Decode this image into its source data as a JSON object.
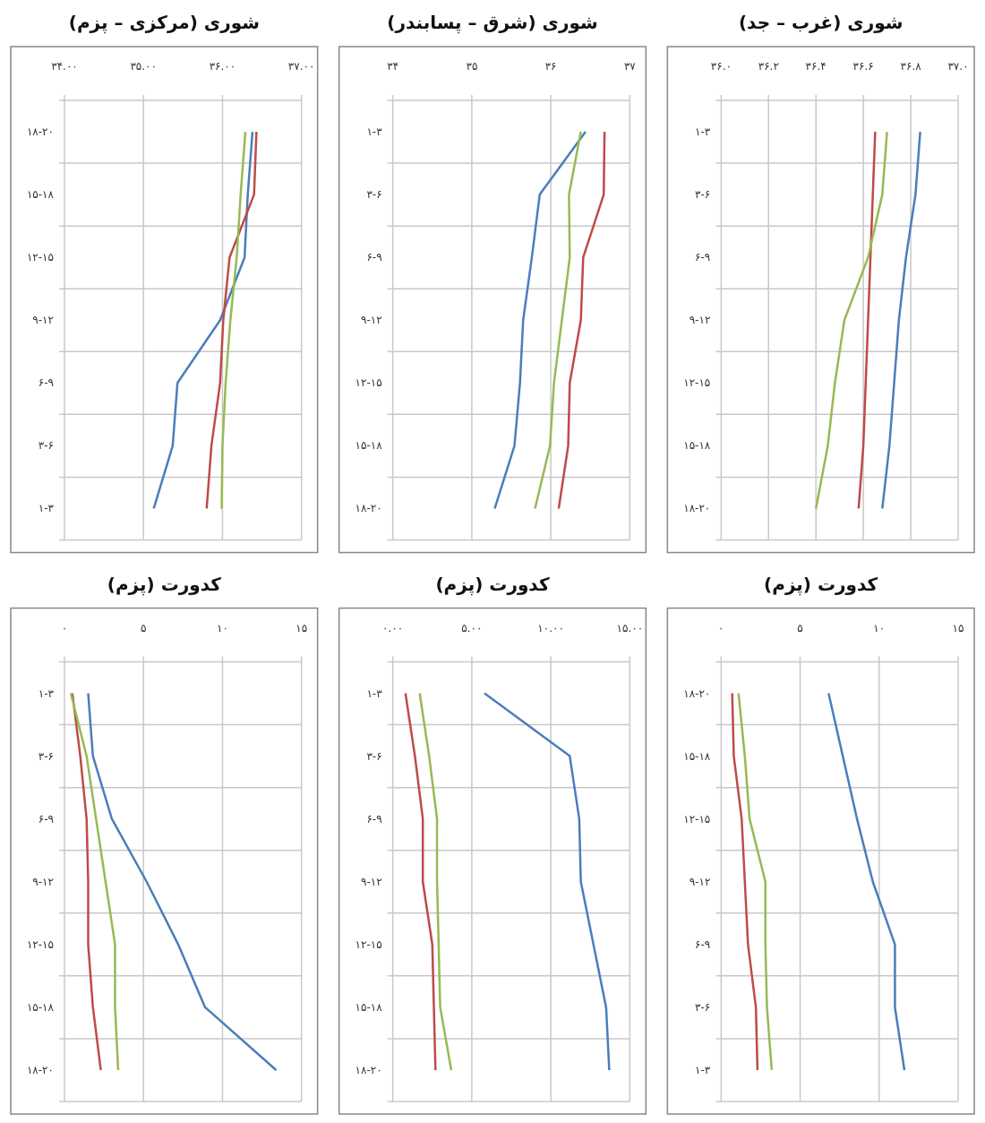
{
  "chart_data": [
    {
      "type": "line",
      "orientation": "horizontal",
      "title": "شوری (مرکزی – پزم)",
      "categories": [
        "۱۸-۲۰",
        "۱۵-۱۸",
        "۱۲-۱۵",
        "۹-۱۲",
        "۶-۹",
        "۳-۶",
        "۱-۳"
      ],
      "xlim": [
        34,
        37
      ],
      "xticks": [
        {
          "value": 34,
          "label": "۳۴.۰۰"
        },
        {
          "value": 35,
          "label": "۳۵.۰۰"
        },
        {
          "value": 36,
          "label": "۳۶.۰۰"
        },
        {
          "value": 37,
          "label": "۳۷.۰۰"
        }
      ],
      "grid": true,
      "series": [
        {
          "color": "#4a7ebb",
          "values": [
            36.38,
            36.32,
            36.28,
            35.97,
            35.43,
            35.37,
            35.13
          ]
        },
        {
          "color": "#be4b48",
          "values": [
            36.43,
            36.4,
            36.09,
            36.01,
            35.97,
            35.86,
            35.8
          ]
        },
        {
          "color": "#98b954",
          "values": [
            36.29,
            36.23,
            36.18,
            36.1,
            36.04,
            36.0,
            35.99
          ]
        }
      ]
    },
    {
      "type": "line",
      "orientation": "horizontal",
      "title": "شوری (شرق – پسابندر)",
      "categories": [
        "۱-۳",
        "۳-۶",
        "۶-۹",
        "۹-۱۲",
        "۱۲-۱۵",
        "۱۵-۱۸",
        "۱۸-۲۰"
      ],
      "xlim": [
        34,
        37
      ],
      "xticks": [
        {
          "value": 34,
          "label": "۳۴"
        },
        {
          "value": 35,
          "label": "۳۵"
        },
        {
          "value": 36,
          "label": "۳۶"
        },
        {
          "value": 37,
          "label": "۳۷"
        }
      ],
      "grid": true,
      "series": [
        {
          "color": "#4a7ebb",
          "values": [
            36.44,
            35.86,
            35.76,
            35.65,
            35.61,
            35.54,
            35.29
          ]
        },
        {
          "color": "#98b954",
          "values": [
            36.38,
            36.23,
            36.24,
            36.14,
            36.04,
            35.99,
            35.8
          ]
        },
        {
          "color": "#be4b48",
          "values": [
            36.68,
            36.67,
            36.41,
            36.38,
            36.24,
            36.22,
            36.1
          ]
        }
      ]
    },
    {
      "type": "line",
      "orientation": "horizontal",
      "title": "شوری (غرب – جد)",
      "categories": [
        "۱-۳",
        "۳-۶",
        "۶-۹",
        "۹-۱۲",
        "۱۲-۱۵",
        "۱۵-۱۸",
        "۱۸-۲۰"
      ],
      "xlim": [
        36,
        37
      ],
      "xticks": [
        {
          "value": 36,
          "label": "۳۶.۰"
        },
        {
          "value": 36.2,
          "label": "۳۶.۲"
        },
        {
          "value": 36.4,
          "label": "۳۶.۴"
        },
        {
          "value": 36.6,
          "label": "۳۶.۶"
        },
        {
          "value": 36.8,
          "label": "۳۶.۸"
        },
        {
          "value": 37,
          "label": "۳۷.۰"
        }
      ],
      "grid": true,
      "series": [
        {
          "color": "#4a7ebb",
          "values": [
            36.84,
            36.82,
            36.78,
            36.75,
            36.73,
            36.71,
            36.68
          ]
        },
        {
          "color": "#be4b48",
          "values": [
            36.65,
            36.64,
            36.63,
            36.62,
            36.61,
            36.6,
            36.58
          ]
        },
        {
          "color": "#98b954",
          "values": [
            36.7,
            36.68,
            36.62,
            36.52,
            36.48,
            36.45,
            36.4
          ]
        }
      ]
    },
    {
      "type": "line",
      "orientation": "horizontal",
      "title": "کدورت (پزم)",
      "categories": [
        "۱-۳",
        "۳-۶",
        "۶-۹",
        "۹-۱۲",
        "۱۲-۱۵",
        "۱۵-۱۸",
        "۱۸-۲۰"
      ],
      "xlim": [
        0,
        15
      ],
      "xticks": [
        {
          "value": 0,
          "label": "۰"
        },
        {
          "value": 5,
          "label": "۵"
        },
        {
          "value": 10,
          "label": "۱۰"
        },
        {
          "value": 15,
          "label": "۱۵"
        }
      ],
      "grid": true,
      "series": [
        {
          "color": "#4a7ebb",
          "values": [
            1.5,
            1.8,
            3.0,
            5.2,
            7.2,
            8.9,
            13.4
          ]
        },
        {
          "color": "#be4b48",
          "values": [
            0.5,
            1.0,
            1.4,
            1.5,
            1.5,
            1.8,
            2.3
          ]
        },
        {
          "color": "#98b954",
          "values": [
            0.4,
            1.4,
            2.0,
            2.6,
            3.2,
            3.2,
            3.4
          ]
        }
      ]
    },
    {
      "type": "line",
      "orientation": "horizontal",
      "title": "کدورت (پزم)",
      "categories": [
        "۱-۳",
        "۳-۶",
        "۶-۹",
        "۹-۱۲",
        "۱۲-۱۵",
        "۱۵-۱۸",
        "۱۸-۲۰"
      ],
      "xlim": [
        0,
        15
      ],
      "xticks": [
        {
          "value": 0,
          "label": "۰.۰۰"
        },
        {
          "value": 5,
          "label": "۵.۰۰"
        },
        {
          "value": 10,
          "label": "۱۰.۰۰"
        },
        {
          "value": 15,
          "label": "۱۵.۰۰"
        }
      ],
      "grid": true,
      "series": [
        {
          "color": "#4a7ebb",
          "values": [
            5.8,
            11.2,
            11.8,
            11.9,
            12.7,
            13.5,
            13.7
          ]
        },
        {
          "color": "#be4b48",
          "values": [
            0.8,
            1.4,
            1.9,
            1.9,
            2.5,
            2.6,
            2.7
          ]
        },
        {
          "color": "#98b954",
          "values": [
            1.7,
            2.3,
            2.8,
            2.8,
            2.9,
            3.0,
            3.7
          ]
        }
      ]
    },
    {
      "type": "line",
      "orientation": "horizontal",
      "title": "کدورت (پزم)",
      "categories": [
        "۱۸-۲۰",
        "۱۵-۱۸",
        "۱۲-۱۵",
        "۹-۱۲",
        "۶-۹",
        "۳-۶",
        "۱-۳"
      ],
      "xlim": [
        0,
        15
      ],
      "xticks": [
        {
          "value": 0,
          "label": "۰"
        },
        {
          "value": 5,
          "label": "۵"
        },
        {
          "value": 10,
          "label": "۱۰"
        },
        {
          "value": 15,
          "label": "۱۵"
        }
      ],
      "grid": true,
      "series": [
        {
          "color": "#4a7ebb",
          "values": [
            6.8,
            7.7,
            8.6,
            9.6,
            11.0,
            11.0,
            11.6
          ]
        },
        {
          "color": "#be4b48",
          "values": [
            0.7,
            0.8,
            1.3,
            1.5,
            1.7,
            2.2,
            2.3
          ]
        },
        {
          "color": "#98b954",
          "values": [
            1.1,
            1.5,
            1.8,
            2.8,
            2.8,
            2.9,
            3.2
          ]
        }
      ]
    }
  ]
}
